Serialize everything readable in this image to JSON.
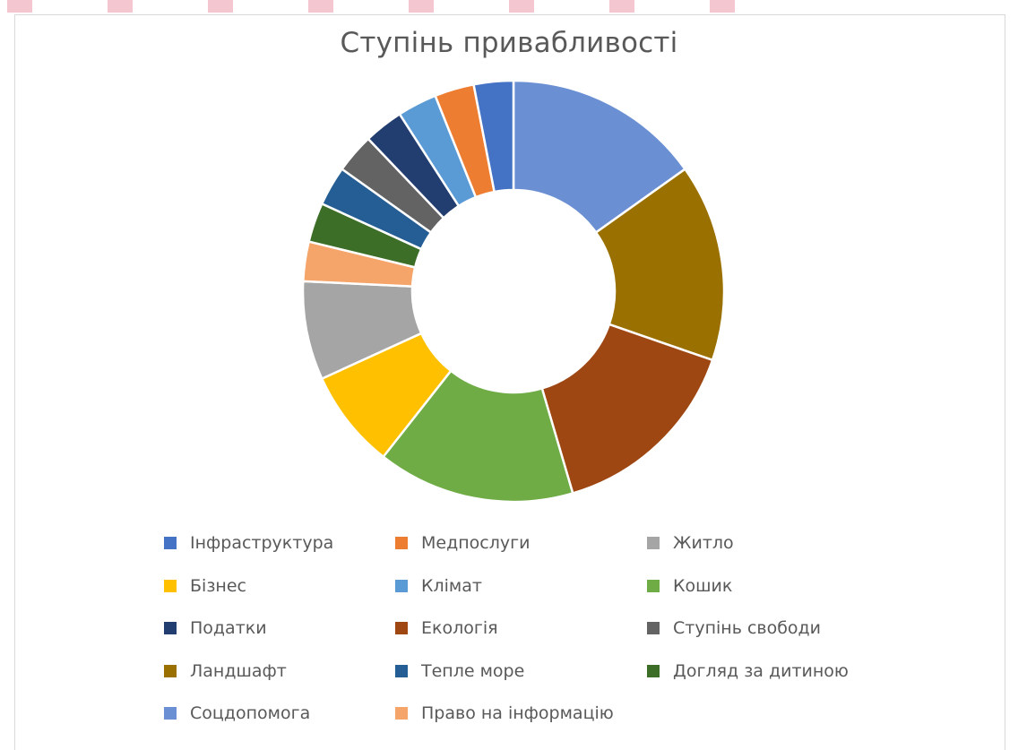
{
  "chart_data": {
    "type": "pie",
    "subtype": "donut",
    "title": "Ступінь привабливості",
    "legend_position": "bottom",
    "start_angle_deg": 0,
    "slices": [
      {
        "label": "Соцдопомога",
        "value": 1,
        "color": "#6a8fd3"
      },
      {
        "label": "Ландшафт",
        "value": 1,
        "color": "#9a7100"
      },
      {
        "label": "Екологія",
        "value": 1,
        "color": "#9e4712"
      },
      {
        "label": "Кошик",
        "value": 1,
        "color": "#6fac46"
      },
      {
        "label": "Бізнес",
        "value": 0.5,
        "color": "#ffc000"
      },
      {
        "label": "Житло",
        "value": 0.5,
        "color": "#a5a5a5"
      },
      {
        "label": "Право на інформацію",
        "value": 0.2,
        "color": "#f5a46a"
      },
      {
        "label": "Догляд за дитиною",
        "value": 0.2,
        "color": "#3c6e27"
      },
      {
        "label": "Тепле море",
        "value": 0.2,
        "color": "#255e94"
      },
      {
        "label": "Ступінь свободи",
        "value": 0.2,
        "color": "#636363"
      },
      {
        "label": "Податки",
        "value": 0.2,
        "color": "#223d6f"
      },
      {
        "label": "Клімат",
        "value": 0.2,
        "color": "#5b9bd5"
      },
      {
        "label": "Медпослуги",
        "value": 0.2,
        "color": "#ed7d31"
      },
      {
        "label": "Інфраструктура",
        "value": 0.2,
        "color": "#4472c4"
      }
    ],
    "legend": [
      {
        "label": "Інфраструктура",
        "color": "#4472c4"
      },
      {
        "label": "Медпослуги",
        "color": "#ed7d31"
      },
      {
        "label": "Житло",
        "color": "#a5a5a5"
      },
      {
        "label": "Бізнес",
        "color": "#ffc000"
      },
      {
        "label": "Клімат",
        "color": "#5b9bd5"
      },
      {
        "label": "Кошик",
        "color": "#6fac46"
      },
      {
        "label": "Податки",
        "color": "#223d6f"
      },
      {
        "label": "Екологія",
        "color": "#9e4712"
      },
      {
        "label": "Ступінь свободи",
        "color": "#636363"
      },
      {
        "label": "Ландшафт",
        "color": "#9a7100"
      },
      {
        "label": "Тепле море",
        "color": "#255e94"
      },
      {
        "label": "Догляд за дитиною",
        "color": "#3c6e27"
      },
      {
        "label": "Соцдопомога",
        "color": "#6a8fd3"
      },
      {
        "label": "Право на інформацію",
        "color": "#f5a46a"
      }
    ]
  }
}
